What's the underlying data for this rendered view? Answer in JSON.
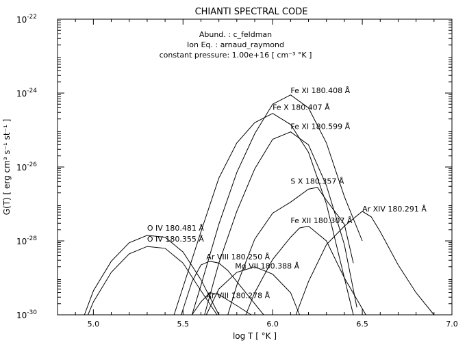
{
  "chart_data": {
    "type": "line",
    "title": "CHIANTI SPECTRAL CODE",
    "annotations": [
      "Abund.  :  c_feldman",
      "Ion Eq.  :  arnaud_raymond",
      "constant pressure: 1.00e+16 [ cm⁻³ °K ]"
    ],
    "xlabel": "log T [ °K ]",
    "ylabel": "G(T) [ erg cm³ s⁻¹ st⁻¹ ]",
    "xlim": [
      4.8,
      7.0
    ],
    "ylim_log10": [
      -30,
      -22
    ],
    "y_scale": "log",
    "x_ticks": [
      {
        "value": 5.0,
        "label": "5.0"
      },
      {
        "value": 5.5,
        "label": "5.5"
      },
      {
        "value": 6.0,
        "label": "6.0"
      },
      {
        "value": 6.5,
        "label": "6.5"
      },
      {
        "value": 7.0,
        "label": "7.0"
      }
    ],
    "y_ticks": [
      {
        "exp": -30,
        "label": "-30"
      },
      {
        "exp": -28,
        "label": "-28"
      },
      {
        "exp": -26,
        "label": "-26"
      },
      {
        "exp": -24,
        "label": "-24"
      },
      {
        "exp": -22,
        "label": "-22"
      }
    ],
    "series": [
      {
        "name": "O  IV 180.481 Å",
        "label_at": [
          5.3,
          -27.72
        ],
        "points": [
          [
            4.95,
            -30
          ],
          [
            5.0,
            -29.35
          ],
          [
            5.1,
            -28.55
          ],
          [
            5.2,
            -28.05
          ],
          [
            5.3,
            -27.85
          ],
          [
            5.4,
            -27.9
          ],
          [
            5.5,
            -28.3
          ],
          [
            5.6,
            -29.05
          ],
          [
            5.7,
            -30
          ]
        ]
      },
      {
        "name": "O  IV 180.355 Å",
        "label_at": [
          5.3,
          -28.02
        ],
        "points": [
          [
            4.97,
            -30
          ],
          [
            5.0,
            -29.65
          ],
          [
            5.1,
            -28.85
          ],
          [
            5.2,
            -28.35
          ],
          [
            5.3,
            -28.15
          ],
          [
            5.4,
            -28.2
          ],
          [
            5.5,
            -28.6
          ],
          [
            5.6,
            -29.35
          ],
          [
            5.69,
            -30
          ]
        ]
      },
      {
        "name": "Ar VIII 180.250 Å",
        "label_at": [
          5.63,
          -28.5
        ],
        "points": [
          [
            5.49,
            -30
          ],
          [
            5.55,
            -29.1
          ],
          [
            5.6,
            -28.65
          ],
          [
            5.65,
            -28.55
          ],
          [
            5.7,
            -28.6
          ],
          [
            5.75,
            -28.8
          ],
          [
            5.85,
            -29.4
          ],
          [
            5.95,
            -30
          ]
        ]
      },
      {
        "name": "Ar VIII 180.278 Å",
        "label_at": [
          5.63,
          -29.55
        ],
        "points": [
          [
            5.55,
            -30
          ],
          [
            5.6,
            -29.65
          ],
          [
            5.65,
            -29.4
          ],
          [
            5.7,
            -29.45
          ],
          [
            5.8,
            -29.75
          ],
          [
            5.88,
            -30
          ]
        ]
      },
      {
        "name": "Mg VII 180.388 Å",
        "label_at": [
          5.79,
          -28.75
        ],
        "points": [
          [
            5.63,
            -30
          ],
          [
            5.7,
            -29.3
          ],
          [
            5.8,
            -28.85
          ],
          [
            5.9,
            -28.7
          ],
          [
            6.0,
            -28.9
          ],
          [
            6.1,
            -29.4
          ],
          [
            6.15,
            -30
          ]
        ]
      },
      {
        "name": "Fe X 180.407 Å",
        "label_at": [
          6.0,
          -24.45
        ],
        "points": [
          [
            5.45,
            -30
          ],
          [
            5.5,
            -29.25
          ],
          [
            5.6,
            -27.75
          ],
          [
            5.7,
            -26.3
          ],
          [
            5.8,
            -25.35
          ],
          [
            5.9,
            -24.8
          ],
          [
            6.0,
            -24.55
          ],
          [
            6.1,
            -24.85
          ],
          [
            6.2,
            -25.6
          ],
          [
            6.3,
            -27.0
          ],
          [
            6.4,
            -29.0
          ],
          [
            6.45,
            -30
          ]
        ]
      },
      {
        "name": "Fe XI 180.408 Å",
        "label_at": [
          6.1,
          -24.0
        ],
        "points": [
          [
            5.55,
            -30
          ],
          [
            5.6,
            -29.2
          ],
          [
            5.7,
            -27.55
          ],
          [
            5.8,
            -26.15
          ],
          [
            5.9,
            -25.1
          ],
          [
            6.0,
            -24.3
          ],
          [
            6.1,
            -24.05
          ],
          [
            6.2,
            -24.4
          ],
          [
            6.3,
            -25.35
          ],
          [
            6.4,
            -26.8
          ],
          [
            6.5,
            -28.0
          ]
        ]
      },
      {
        "name": "Fe XI 180.599 Å",
        "label_at": [
          6.1,
          -24.97
        ],
        "points": [
          [
            5.62,
            -30
          ],
          [
            5.7,
            -28.6
          ],
          [
            5.8,
            -27.2
          ],
          [
            5.9,
            -26.05
          ],
          [
            6.0,
            -25.25
          ],
          [
            6.1,
            -25.05
          ],
          [
            6.2,
            -25.4
          ],
          [
            6.3,
            -26.5
          ],
          [
            6.4,
            -28.1
          ],
          [
            6.47,
            -29.8
          ]
        ]
      },
      {
        "name": "S  X 180.357 Å",
        "label_at": [
          6.1,
          -26.45
        ],
        "points": [
          [
            5.75,
            -30
          ],
          [
            5.8,
            -29.2
          ],
          [
            5.9,
            -27.95
          ],
          [
            6.0,
            -27.25
          ],
          [
            6.1,
            -26.95
          ],
          [
            6.2,
            -26.6
          ],
          [
            6.25,
            -26.55
          ],
          [
            6.3,
            -26.9
          ],
          [
            6.4,
            -27.55
          ],
          [
            6.45,
            -28.6
          ]
        ]
      },
      {
        "name": "Fe XII 180.307 Å",
        "label_at": [
          6.1,
          -27.52
        ],
        "points": [
          [
            5.85,
            -30
          ],
          [
            5.9,
            -29.4
          ],
          [
            6.0,
            -28.5
          ],
          [
            6.1,
            -27.9
          ],
          [
            6.15,
            -27.65
          ],
          [
            6.2,
            -27.6
          ],
          [
            6.3,
            -28.0
          ],
          [
            6.4,
            -29.0
          ],
          [
            6.52,
            -30
          ]
        ]
      },
      {
        "name": "Ar XIV 180.291 Å",
        "label_at": [
          6.5,
          -27.2
        ],
        "points": [
          [
            6.13,
            -30
          ],
          [
            6.2,
            -29.1
          ],
          [
            6.3,
            -28.1
          ],
          [
            6.4,
            -27.6
          ],
          [
            6.5,
            -27.2
          ],
          [
            6.55,
            -27.35
          ],
          [
            6.6,
            -27.75
          ],
          [
            6.7,
            -28.65
          ],
          [
            6.8,
            -29.4
          ],
          [
            6.9,
            -30
          ]
        ]
      }
    ]
  }
}
